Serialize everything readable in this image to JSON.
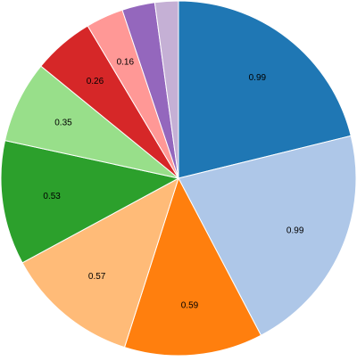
{
  "chart_data": {
    "type": "pie",
    "title": "",
    "start_angle_deg": 0,
    "direction": "clockwise",
    "slices": [
      {
        "value": 0.99,
        "label": "0.99",
        "color": "#1f77b4"
      },
      {
        "value": 0.99,
        "label": "0.99",
        "color": "#aec7e8"
      },
      {
        "value": 0.59,
        "label": "0.59",
        "color": "#ff7f0e"
      },
      {
        "value": 0.57,
        "label": "0.57",
        "color": "#ffbb78"
      },
      {
        "value": 0.53,
        "label": "0.53",
        "color": "#2ca02c"
      },
      {
        "value": 0.35,
        "label": "0.35",
        "color": "#98df8a"
      },
      {
        "value": 0.26,
        "label": "0.26",
        "color": "#d62728"
      },
      {
        "value": 0.16,
        "label": "0.16",
        "color": "#ff9896"
      },
      {
        "value": 0.14,
        "label": "",
        "color": "#9467bd"
      },
      {
        "value": 0.1,
        "label": "",
        "color": "#c5b0d5"
      }
    ]
  }
}
